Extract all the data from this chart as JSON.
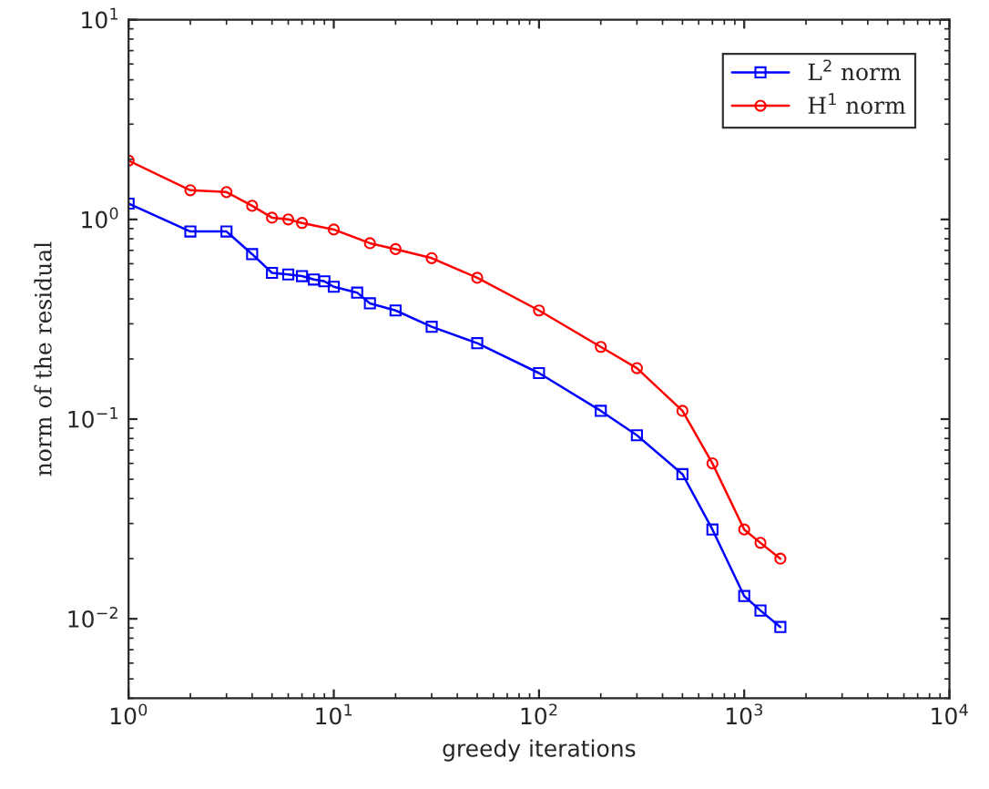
{
  "chart_data": {
    "type": "line",
    "xlabel": "greedy iterations",
    "ylabel": "norm of the residual",
    "log": "xy",
    "grid": false,
    "legend": "top right",
    "line_style": "solid",
    "xlim": [
      1,
      10000
    ],
    "ylim": [
      0.004,
      10
    ],
    "xticks": [
      {
        "value": 1,
        "label": "10$^{0}$"
      },
      {
        "value": 10,
        "label": "10$^{1}$"
      },
      {
        "value": 100,
        "label": "10$^{2}$"
      },
      {
        "value": 1000,
        "label": "10$^{3}$"
      },
      {
        "value": 10000,
        "label": "10$^{4}$"
      }
    ],
    "yticks": [
      {
        "value": 0.01,
        "label": "10$^{−2}$"
      },
      {
        "value": 0.1,
        "label": "10$^{−1}$"
      },
      {
        "value": 1,
        "label": "10$^{0}$"
      },
      {
        "value": 10,
        "label": "10$^{1}$"
      }
    ],
    "series": [
      {
        "name": "L$^{2}$ norm",
        "color": "#0000ff",
        "marker": "square",
        "x": [
          1,
          2,
          3,
          4,
          5,
          6,
          7,
          8,
          9,
          10,
          13,
          15,
          20,
          30,
          50,
          100,
          200,
          300,
          500,
          700,
          1000,
          1200,
          1500
        ],
        "values": [
          1.2,
          0.87,
          0.87,
          0.67,
          0.54,
          0.53,
          0.52,
          0.5,
          0.49,
          0.46,
          0.43,
          0.38,
          0.35,
          0.29,
          0.24,
          0.17,
          0.11,
          0.083,
          0.053,
          0.028,
          0.013,
          0.011,
          0.0091
        ]
      },
      {
        "name": "H$^{1}$ norm",
        "color": "#ff0000",
        "marker": "circle",
        "x": [
          1,
          2,
          3,
          4,
          5,
          6,
          7,
          10,
          15,
          20,
          30,
          50,
          100,
          200,
          300,
          500,
          700,
          1000,
          1200,
          1500
        ],
        "values": [
          1.97,
          1.4,
          1.37,
          1.17,
          1.02,
          1.0,
          0.96,
          0.89,
          0.76,
          0.71,
          0.64,
          0.51,
          0.35,
          0.23,
          0.18,
          0.11,
          0.06,
          0.028,
          0.024,
          0.02
        ]
      }
    ]
  }
}
